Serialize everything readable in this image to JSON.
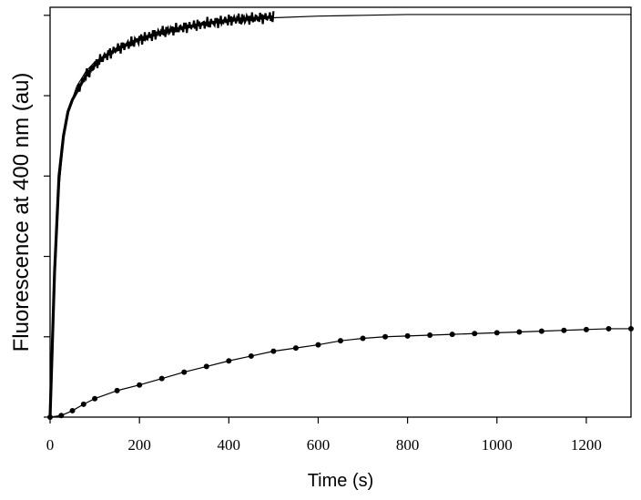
{
  "chart_data": {
    "type": "line",
    "title": "",
    "xlabel": "Time (s)",
    "ylabel": "Fluorescence at 400 nm (au)",
    "xlim": [
      0,
      1300
    ],
    "ylim": [
      0,
      5.1
    ],
    "x_ticks": [
      0,
      200,
      400,
      600,
      800,
      1000,
      1200
    ],
    "x_tick_labels": [
      "0",
      "200",
      "400",
      "600",
      "800",
      "1000",
      "1200"
    ],
    "y_ticks": [
      0,
      1,
      2,
      3,
      4,
      5
    ],
    "y_tick_labels": [],
    "grid": false,
    "legend": "none",
    "colors": {
      "data": "#000000",
      "axis": "#000000",
      "background": "#ffffff"
    },
    "series": [
      {
        "style": "thick-noisy-trace",
        "x": [
          0,
          10,
          20,
          30,
          40,
          50,
          60,
          80,
          100,
          120,
          150,
          200,
          250,
          300,
          350,
          400,
          450,
          500
        ],
        "y": [
          0,
          1.8,
          3.0,
          3.5,
          3.8,
          3.95,
          4.05,
          4.25,
          4.38,
          4.48,
          4.58,
          4.7,
          4.79,
          4.85,
          4.9,
          4.94,
          4.96,
          4.98
        ]
      },
      {
        "style": "thin-fit-line",
        "x": [
          0,
          5,
          10,
          20,
          30,
          40,
          60,
          80,
          100,
          150,
          200,
          250,
          300,
          400,
          500,
          600,
          700,
          800,
          900,
          1000,
          1100,
          1200,
          1300
        ],
        "y": [
          0,
          1.0,
          1.8,
          2.85,
          3.45,
          3.8,
          4.12,
          4.3,
          4.42,
          4.6,
          4.72,
          4.8,
          4.86,
          4.93,
          4.97,
          4.99,
          5.0,
          5.01,
          5.01,
          5.01,
          5.01,
          5.01,
          5.01
        ]
      },
      {
        "style": "dotted-markers",
        "x": [
          0,
          25,
          50,
          75,
          100,
          150,
          200,
          250,
          300,
          350,
          400,
          450,
          500,
          550,
          600,
          650,
          700,
          750,
          800,
          850,
          900,
          950,
          1000,
          1050,
          1100,
          1150,
          1200,
          1250,
          1300
        ],
        "y": [
          0,
          0.02,
          0.08,
          0.16,
          0.23,
          0.33,
          0.4,
          0.48,
          0.56,
          0.63,
          0.7,
          0.76,
          0.82,
          0.86,
          0.9,
          0.95,
          0.98,
          1.0,
          1.01,
          1.02,
          1.03,
          1.04,
          1.05,
          1.06,
          1.07,
          1.08,
          1.09,
          1.1,
          1.1
        ]
      }
    ]
  }
}
